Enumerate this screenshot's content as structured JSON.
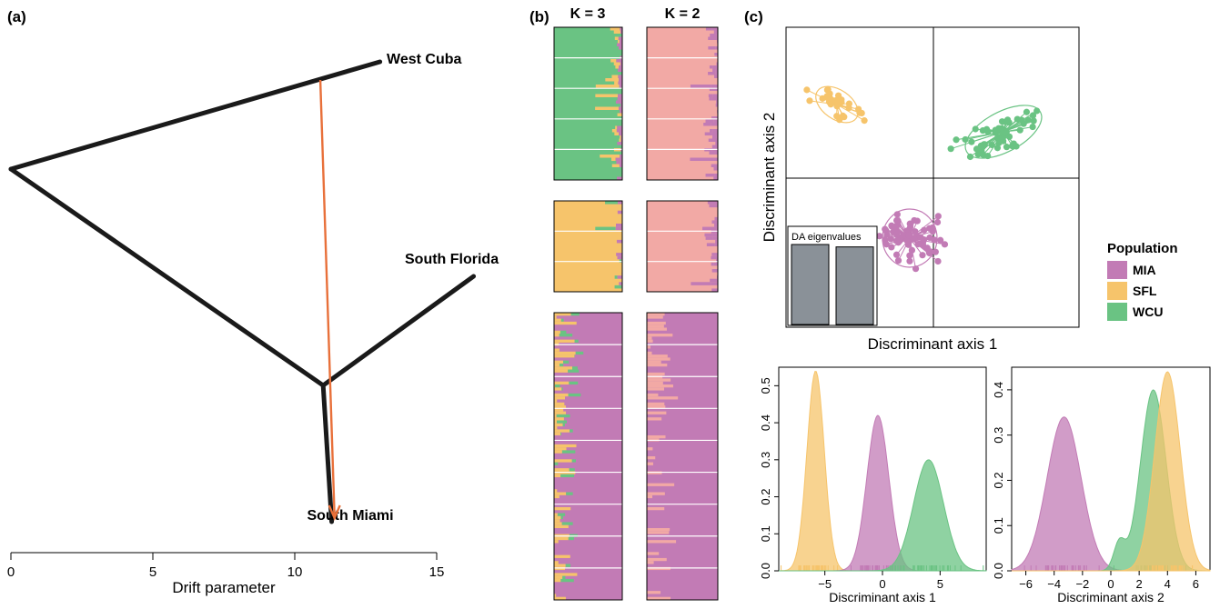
{
  "colors": {
    "MIA": "#c27bb5",
    "SFL": "#f6c46b",
    "WCU": "#6ac383",
    "K2": "#f2a9a5",
    "tree": "#1a1a1a",
    "migration": "#e8703a",
    "eigen": "#8a9198"
  },
  "panels": {
    "a": "(a)",
    "b": "(b)",
    "c": "(c)"
  },
  "chart_data": [
    {
      "id": "a",
      "type": "tree",
      "xlabel": "Drift parameter",
      "xticks": [
        0,
        5,
        10,
        15
      ],
      "xlim": [
        0,
        15
      ],
      "nodes": [
        {
          "id": "root",
          "drift": 0.0
        },
        {
          "id": "inner",
          "drift": 11.0
        },
        {
          "id": "west_cuba",
          "drift": 13.0,
          "label": "West Cuba"
        },
        {
          "id": "south_florida",
          "drift": 16.3,
          "label": "South Florida"
        },
        {
          "id": "south_miami",
          "drift": 11.3,
          "label": "South Miami"
        }
      ],
      "edges": [
        [
          "root",
          "west_cuba"
        ],
        [
          "root",
          "inner"
        ],
        [
          "inner",
          "south_florida"
        ],
        [
          "inner",
          "south_miami"
        ]
      ],
      "migration": {
        "from_drift": 10.9,
        "to": "south_miami",
        "to_drift": 11.4
      }
    },
    {
      "id": "b",
      "type": "bar",
      "stacked": true,
      "columns": [
        {
          "label": "K = 3"
        },
        {
          "label": "K = 2"
        }
      ],
      "groups": [
        "WCU",
        "SFL",
        "MIA"
      ]
    },
    {
      "id": "c-scatter",
      "type": "scatter",
      "xlabel": "Discriminant axis 1",
      "ylabel": "Discriminant axis 2",
      "inset_title": "DA eigenvalues",
      "eigenvalues": [
        1.0,
        0.97
      ],
      "legend": {
        "title": "Population",
        "entries": [
          "MIA",
          "SFL",
          "WCU"
        ],
        "placement": "right"
      }
    },
    {
      "id": "c-density1",
      "type": "area",
      "xlabel": "Discriminant axis 1",
      "xlim": [
        -9,
        9
      ],
      "ylim": [
        0,
        0.55
      ],
      "xticks": [
        -5,
        0,
        5
      ],
      "yticks": [
        0.0,
        0.1,
        0.2,
        0.3,
        0.4,
        0.5
      ],
      "series": [
        {
          "name": "SFL",
          "mu": -5.8,
          "sd": 0.75,
          "peak": 0.54
        },
        {
          "name": "MIA",
          "mu": -0.4,
          "sd": 0.95,
          "peak": 0.42
        },
        {
          "name": "WCU",
          "mu": 4.0,
          "sd": 1.3,
          "peak": 0.3
        }
      ]
    },
    {
      "id": "c-density2",
      "type": "area",
      "xlabel": "Discriminant axis 2",
      "xlim": [
        -7,
        7
      ],
      "ylim": [
        0,
        0.45
      ],
      "xticks": [
        -6,
        -4,
        -2,
        0,
        2,
        4,
        6
      ],
      "yticks": [
        0.0,
        0.1,
        0.2,
        0.3,
        0.4
      ],
      "series": [
        {
          "name": "MIA",
          "mu": -3.3,
          "sd": 1.2,
          "peak": 0.34
        },
        {
          "name": "WCU",
          "mu": 3.0,
          "sd": 0.9,
          "peak": 0.4
        },
        {
          "name": "SFL",
          "mu": 4.0,
          "sd": 0.9,
          "peak": 0.44
        }
      ]
    }
  ]
}
